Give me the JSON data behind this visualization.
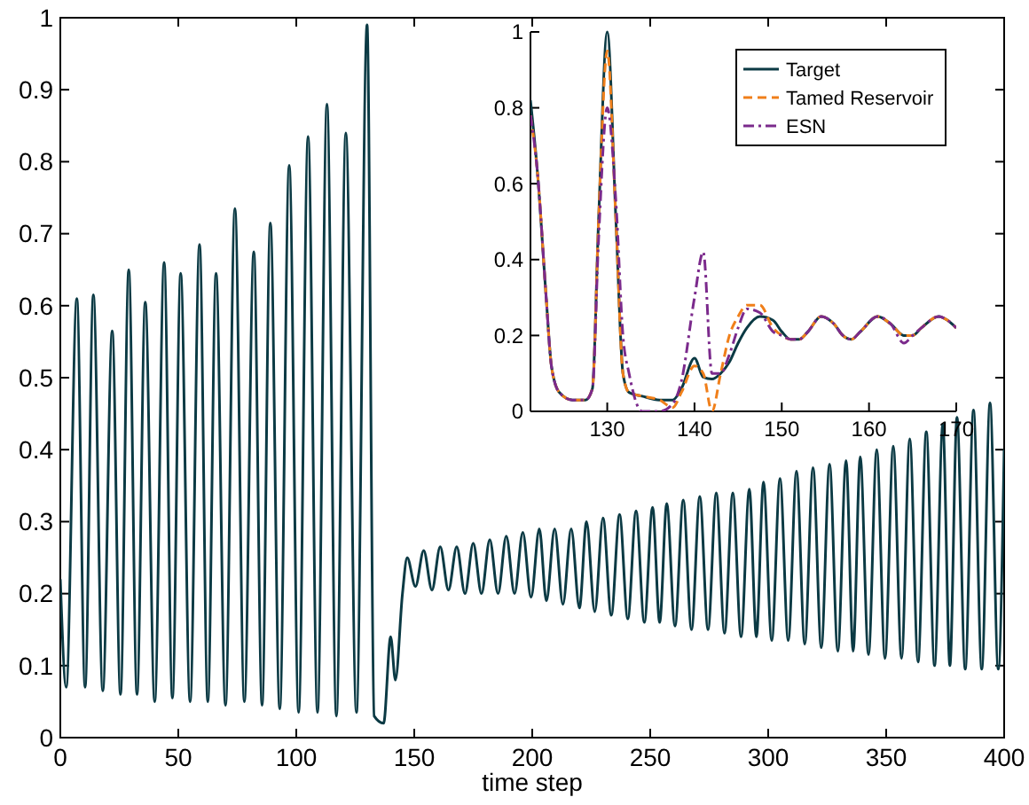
{
  "chart_data": [
    {
      "type": "line",
      "xlabel": "time step",
      "xlim": [
        0,
        400
      ],
      "ylim": [
        0,
        1
      ],
      "xticks": [
        0,
        50,
        100,
        150,
        200,
        250,
        300,
        350,
        400
      ],
      "yticks": [
        0,
        0.1,
        0.2,
        0.3,
        0.4,
        0.5,
        0.6,
        0.7,
        0.8,
        0.9,
        1
      ],
      "grid": false,
      "legend": false,
      "x": [
        0,
        2.5,
        7,
        10.5,
        14,
        18,
        22,
        25.5,
        29,
        32.5,
        36,
        40,
        44,
        47.5,
        51,
        55,
        59,
        62.5,
        66,
        70,
        74,
        78,
        82,
        85.5,
        89,
        93,
        97,
        101,
        105,
        109,
        113,
        117,
        121,
        125.5,
        130,
        133,
        137,
        140,
        142,
        145,
        147,
        150.5,
        154,
        157.5,
        161,
        164.5,
        168,
        171.5,
        175,
        178.5,
        182,
        185.5,
        189,
        192.5,
        196,
        199.5,
        203,
        206,
        209.5,
        213,
        216.5,
        220,
        223,
        226.5,
        230,
        233.5,
        237,
        240.5,
        244,
        247.5,
        251,
        254,
        257,
        260.5,
        264,
        267.5,
        271,
        274.5,
        278,
        281.5,
        285,
        288.5,
        292,
        295,
        298,
        301.5,
        305,
        308.5,
        312,
        315.5,
        319,
        322.5,
        326,
        329.5,
        333,
        336,
        339,
        342.5,
        346,
        349.5,
        353,
        356.5,
        360,
        363.5,
        367,
        370.5,
        374,
        377,
        380,
        383.5,
        387,
        390.5,
        394,
        397.5,
        400
      ],
      "series": [
        {
          "color": "#0b3a44",
          "values": [
            0.22,
            0.07,
            0.61,
            0.07,
            0.615,
            0.065,
            0.565,
            0.06,
            0.65,
            0.06,
            0.605,
            0.05,
            0.66,
            0.055,
            0.645,
            0.05,
            0.685,
            0.05,
            0.645,
            0.045,
            0.735,
            0.05,
            0.675,
            0.045,
            0.715,
            0.04,
            0.795,
            0.035,
            0.835,
            0.035,
            0.88,
            0.03,
            0.84,
            0.035,
            0.99,
            0.03,
            0.02,
            0.14,
            0.08,
            0.2,
            0.25,
            0.21,
            0.26,
            0.205,
            0.265,
            0.205,
            0.265,
            0.2,
            0.27,
            0.2,
            0.275,
            0.2,
            0.28,
            0.2,
            0.285,
            0.195,
            0.29,
            0.19,
            0.29,
            0.185,
            0.29,
            0.18,
            0.3,
            0.175,
            0.305,
            0.17,
            0.31,
            0.165,
            0.315,
            0.16,
            0.32,
            0.16,
            0.325,
            0.155,
            0.33,
            0.15,
            0.335,
            0.15,
            0.34,
            0.145,
            0.34,
            0.14,
            0.345,
            0.14,
            0.355,
            0.135,
            0.36,
            0.135,
            0.37,
            0.13,
            0.375,
            0.125,
            0.38,
            0.12,
            0.385,
            0.12,
            0.39,
            0.115,
            0.4,
            0.11,
            0.405,
            0.11,
            0.415,
            0.105,
            0.425,
            0.1,
            0.435,
            0.1,
            0.445,
            0.095,
            0.455,
            0.095,
            0.465,
            0.095,
            0.4
          ]
        }
      ]
    },
    {
      "type": "line",
      "xlim": [
        121.2,
        170
      ],
      "ylim": [
        0,
        1
      ],
      "xticks": [
        130,
        140,
        150,
        160,
        170
      ],
      "yticks": [
        0,
        0.2,
        0.4,
        0.6,
        0.8,
        1
      ],
      "grid": false,
      "legend": "top right",
      "x": [
        121.2,
        122,
        123,
        123.6,
        124.5,
        126,
        127.5,
        128.3,
        129,
        130,
        131,
        131.8,
        132.5,
        134,
        136,
        137.5,
        138.5,
        140,
        141,
        142,
        143,
        144,
        145,
        146,
        147.5,
        149,
        150,
        151,
        152,
        153,
        154.5,
        156,
        157,
        158,
        159,
        161,
        162.5,
        164,
        165,
        166,
        168,
        169,
        170
      ],
      "series": [
        {
          "name": "Target",
          "color": "#0b3a44",
          "line_style": "solid",
          "values": [
            0.82,
            0.63,
            0.3,
            0.12,
            0.05,
            0.03,
            0.03,
            0.06,
            0.5,
            1.0,
            0.5,
            0.1,
            0.05,
            0.04,
            0.03,
            0.03,
            0.06,
            0.14,
            0.09,
            0.085,
            0.1,
            0.13,
            0.18,
            0.22,
            0.25,
            0.24,
            0.21,
            0.19,
            0.19,
            0.21,
            0.25,
            0.23,
            0.2,
            0.19,
            0.21,
            0.25,
            0.23,
            0.2,
            0.2,
            0.22,
            0.25,
            0.24,
            0.22
          ]
        },
        {
          "name": "Tamed Reservoir",
          "color": "#f07f1a",
          "line_style": "dashed",
          "values": [
            0.78,
            0.63,
            0.3,
            0.12,
            0.05,
            0.03,
            0.03,
            0.06,
            0.5,
            0.95,
            0.5,
            0.1,
            0.05,
            0.04,
            0.03,
            0.01,
            0.05,
            0.12,
            0.1,
            0.0,
            0.1,
            0.2,
            0.25,
            0.28,
            0.28,
            0.22,
            0.2,
            0.19,
            0.19,
            0.21,
            0.25,
            0.23,
            0.2,
            0.19,
            0.21,
            0.25,
            0.23,
            0.2,
            0.2,
            0.22,
            0.25,
            0.24,
            0.22
          ]
        },
        {
          "name": "ESN",
          "color": "#7b2a8c",
          "line_style": "dashdot",
          "values": [
            0.78,
            0.63,
            0.3,
            0.12,
            0.05,
            0.03,
            0.03,
            0.06,
            0.45,
            0.8,
            0.55,
            0.2,
            0.1,
            0.0,
            0.0,
            0.02,
            0.08,
            0.3,
            0.42,
            0.1,
            0.1,
            0.15,
            0.22,
            0.27,
            0.26,
            0.21,
            0.2,
            0.19,
            0.19,
            0.21,
            0.25,
            0.23,
            0.2,
            0.19,
            0.21,
            0.25,
            0.23,
            0.18,
            0.2,
            0.22,
            0.25,
            0.24,
            0.22
          ]
        }
      ]
    }
  ]
}
